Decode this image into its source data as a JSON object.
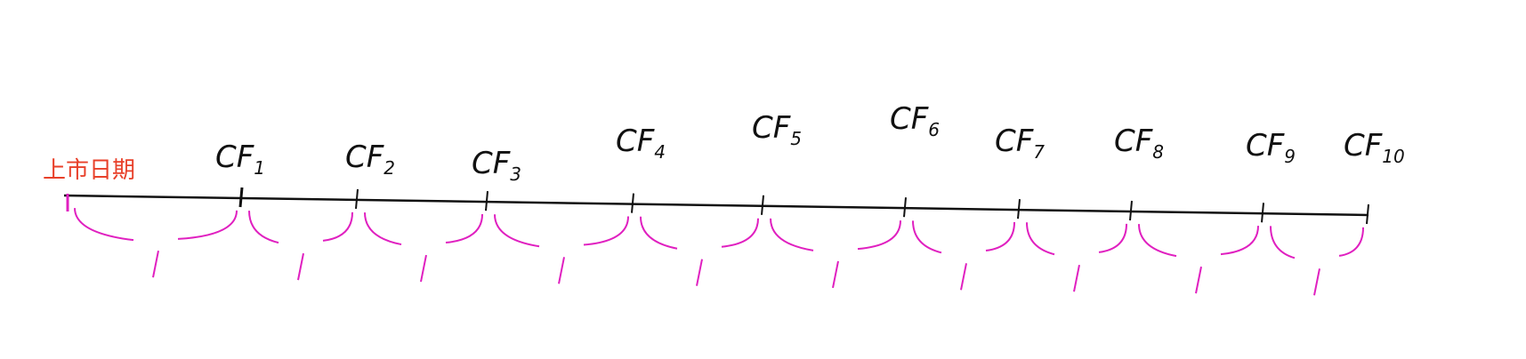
{
  "diagram": {
    "start_label": "上市日期",
    "cash_flows": [
      {
        "label": "CF",
        "sub": "1"
      },
      {
        "label": "CF",
        "sub": "2"
      },
      {
        "label": "CF",
        "sub": "3"
      },
      {
        "label": "CF",
        "sub": "4"
      },
      {
        "label": "CF",
        "sub": "5"
      },
      {
        "label": "CF",
        "sub": "6"
      },
      {
        "label": "CF",
        "sub": "7"
      },
      {
        "label": "CF",
        "sub": "8"
      },
      {
        "label": "CF",
        "sub": "9"
      },
      {
        "label": "CF",
        "sub": "10"
      }
    ],
    "colors": {
      "timeline": "#111111",
      "start_label": "#e8402a",
      "start_tick": "#e020c0",
      "braces": "#e020c0"
    }
  }
}
